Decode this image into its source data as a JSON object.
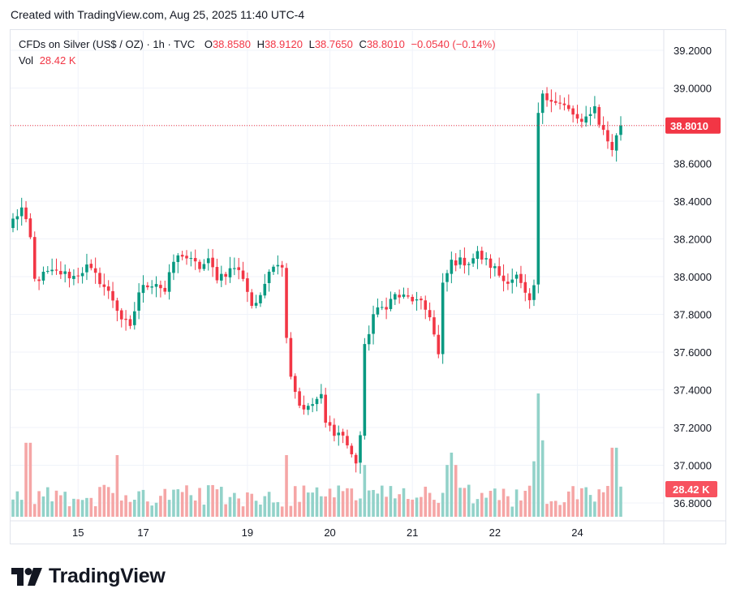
{
  "header": {
    "created": "Created with TradingView.com, Aug 25, 2025 11:40 UTC-4"
  },
  "legend": {
    "symbol": "CFDs on Silver (US$ / OZ) · 1h · TVC",
    "o_label": "O",
    "o_value": "38.8580",
    "h_label": "H",
    "h_value": "38.9120",
    "l_label": "L",
    "l_value": "38.7650",
    "c_label": "C",
    "c_value": "38.8010",
    "change": "−0.0540 (−0.14%)",
    "vol_label": "Vol",
    "vol_value": "28.42 K"
  },
  "footer": {
    "brand": "TradingView"
  },
  "colors": {
    "up": "#089981",
    "down": "#f23645",
    "vol_up": "#92d2c9",
    "vol_down": "#f5a6a6",
    "grid": "#f0f3fa"
  },
  "chart_data": {
    "type": "candlestick",
    "price_axis": {
      "ticks": [
        "39.2000",
        "39.0000",
        "38.8000",
        "38.6000",
        "38.4000",
        "38.2000",
        "38.0000",
        "37.8000",
        "37.6000",
        "37.4000",
        "37.2000",
        "37.0000",
        "36.8000"
      ],
      "range": [
        36.78,
        39.28
      ],
      "last_price_label": "38.8010",
      "last_price": 38.801,
      "volume_label": "28.42 K"
    },
    "time_axis": {
      "ticks": [
        "15",
        "17",
        "19",
        "20",
        "21",
        "22",
        "24"
      ],
      "tick_bar_index": [
        15,
        30,
        54,
        73,
        92,
        111,
        130
      ]
    },
    "grid": true,
    "close_path": [
      [
        0,
        38.3
      ],
      [
        2,
        38.36
      ],
      [
        4,
        38.2
      ],
      [
        5,
        37.98
      ],
      [
        8,
        38.02
      ],
      [
        11,
        38.02
      ],
      [
        14,
        38.0
      ],
      [
        17,
        38.05
      ],
      [
        20,
        37.98
      ],
      [
        23,
        37.88
      ],
      [
        25,
        37.78
      ],
      [
        27,
        37.72
      ],
      [
        29,
        37.92
      ],
      [
        31,
        37.96
      ],
      [
        33,
        37.97
      ],
      [
        35,
        37.92
      ],
      [
        37,
        38.08
      ],
      [
        39,
        38.12
      ],
      [
        41,
        38.08
      ],
      [
        43,
        38.05
      ],
      [
        45,
        38.08
      ],
      [
        47,
        38.0
      ],
      [
        49,
        38.02
      ],
      [
        51,
        38.05
      ],
      [
        53,
        38.0
      ],
      [
        55,
        37.85
      ],
      [
        57,
        37.88
      ],
      [
        59,
        38.05
      ],
      [
        61,
        38.08
      ],
      [
        62,
        38.04
      ],
      [
        63,
        37.7
      ],
      [
        64,
        37.48
      ],
      [
        66,
        37.32
      ],
      [
        68,
        37.3
      ],
      [
        70,
        37.35
      ],
      [
        71,
        37.36
      ],
      [
        72,
        37.22
      ],
      [
        74,
        37.18
      ],
      [
        76,
        37.16
      ],
      [
        78,
        37.05
      ],
      [
        79,
        37.02
      ],
      [
        80,
        37.16
      ],
      [
        81,
        37.62
      ],
      [
        83,
        37.8
      ],
      [
        86,
        37.85
      ],
      [
        88,
        37.9
      ],
      [
        90,
        37.89
      ],
      [
        92,
        37.88
      ],
      [
        94,
        37.85
      ],
      [
        96,
        37.8
      ],
      [
        98,
        37.58
      ],
      [
        99,
        37.95
      ],
      [
        101,
        38.08
      ],
      [
        103,
        38.08
      ],
      [
        105,
        38.08
      ],
      [
        107,
        38.12
      ],
      [
        109,
        38.08
      ],
      [
        111,
        38.04
      ],
      [
        113,
        37.98
      ],
      [
        116,
        38.0
      ],
      [
        118,
        37.9
      ],
      [
        119,
        37.85
      ],
      [
        120,
        37.95
      ],
      [
        121,
        38.85
      ],
      [
        122,
        38.98
      ],
      [
        125,
        38.92
      ],
      [
        127,
        38.9
      ],
      [
        129,
        38.86
      ],
      [
        131,
        38.8
      ],
      [
        133,
        38.88
      ],
      [
        134,
        38.9
      ],
      [
        135,
        38.82
      ],
      [
        137,
        38.72
      ],
      [
        138,
        38.68
      ],
      [
        140,
        38.8
      ]
    ],
    "volume_spikes": [
      [
        3,
        0.6
      ],
      [
        4,
        0.6
      ],
      [
        24,
        0.5
      ],
      [
        63,
        0.5
      ],
      [
        81,
        0.42
      ],
      [
        100,
        0.42
      ],
      [
        101,
        0.52
      ],
      [
        102,
        0.42
      ],
      [
        120,
        0.45
      ],
      [
        121,
        1.0
      ],
      [
        122,
        0.62
      ],
      [
        138,
        0.56
      ],
      [
        139,
        0.56
      ]
    ],
    "bar_count": 141
  }
}
